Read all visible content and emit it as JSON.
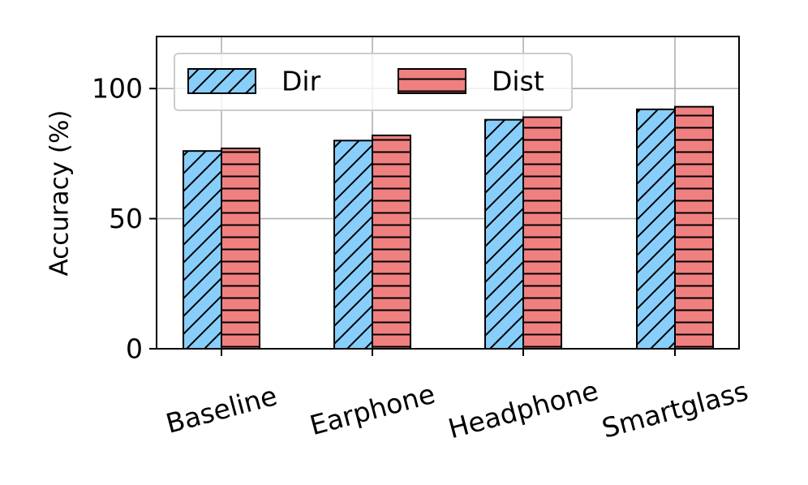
{
  "chart_data": {
    "type": "bar",
    "categories": [
      "Baseline",
      "Earphone",
      "Headphone",
      "Smartglass"
    ],
    "series": [
      {
        "name": "Dir",
        "values": [
          76,
          80,
          88,
          92
        ],
        "color": "#87cefa",
        "hatch": "diagonal"
      },
      {
        "name": "Dist",
        "values": [
          77,
          82,
          89,
          93
        ],
        "color": "#f08080",
        "hatch": "horizontal"
      }
    ],
    "title": "",
    "xlabel": "",
    "ylabel": "Accuracy (%)",
    "ylim": [
      0,
      120
    ],
    "yticks": [
      0,
      50,
      100
    ],
    "grid": true,
    "legend_position": "top-left",
    "xtick_rotation": 15
  }
}
